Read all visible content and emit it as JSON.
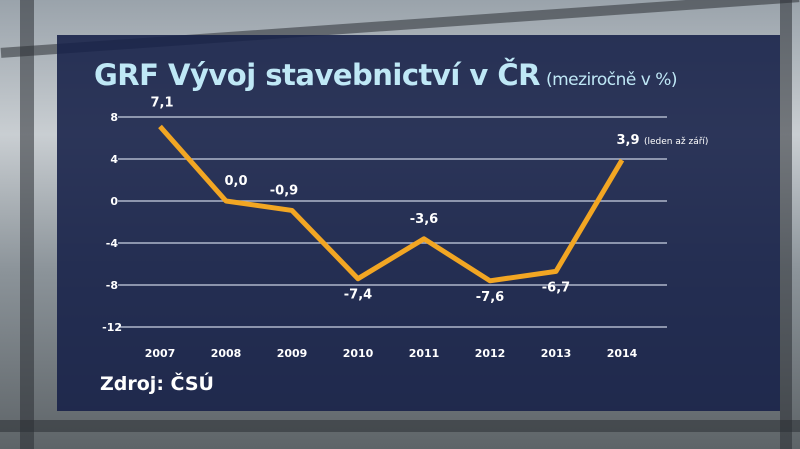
{
  "chart_data": {
    "type": "line",
    "title": "GRF Vývoj stavebnictví v ČR",
    "subtitle": "(meziročně v %)",
    "categories": [
      "2007",
      "2008",
      "2009",
      "2010",
      "2011",
      "2012",
      "2013",
      "2014"
    ],
    "values": [
      7.1,
      0.0,
      -0.9,
      -7.4,
      -3.6,
      -7.6,
      -6.7,
      3.9
    ],
    "data_labels": [
      "7,1",
      "0,0",
      "-0,9",
      "-7,4",
      "-3,6",
      "-7,6",
      "-6,7",
      "3,9"
    ],
    "annotation": "(leden až září)",
    "yticks": [
      8,
      4,
      0,
      -4,
      -8,
      -12
    ],
    "ytick_labels": [
      "8",
      "4",
      "0",
      "-4",
      "-8",
      "-12"
    ],
    "ylim": [
      -12,
      8
    ],
    "grid": true,
    "xlabel": "",
    "ylabel": "",
    "line_color": "#f2a623"
  },
  "source": "Zdroj: ČSÚ"
}
